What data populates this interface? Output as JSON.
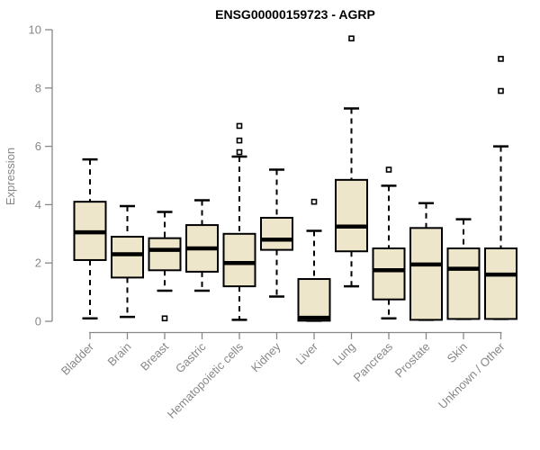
{
  "title": "ENSG00000159723 - AGRP",
  "colors": {
    "box_fill": "#EDE6CA",
    "box_border": "#000000",
    "median": "#000000",
    "whisker": "#000000",
    "axis": "#888888",
    "axis_text": "#878787",
    "title_text": "#000000",
    "background": "#ffffff"
  },
  "chart_data": {
    "type": "boxplot",
    "title": "ENSG00000159723 - AGRP",
    "xlabel": "",
    "ylabel": "Expression",
    "ylim": [
      0,
      10
    ],
    "yticks": [
      "0",
      "2",
      "4",
      "6",
      "8",
      "10"
    ],
    "ytick_values": [
      0,
      2,
      4,
      6,
      8,
      10
    ],
    "grid": false,
    "legend": false,
    "categories": [
      "Bladder",
      "Brain",
      "Breast",
      "Gastric",
      "Hematopoietic cells",
      "Kidney",
      "Liver",
      "Lung",
      "Pancreas",
      "Prostate",
      "Skin",
      "Unknown / Other"
    ],
    "series": [
      {
        "name": "Bladder",
        "min": 0.1,
        "q1": 2.1,
        "median": 3.05,
        "q3": 4.1,
        "max": 5.55,
        "outliers": []
      },
      {
        "name": "Brain",
        "min": 0.15,
        "q1": 1.5,
        "median": 2.3,
        "q3": 2.9,
        "max": 3.95,
        "outliers": []
      },
      {
        "name": "Breast",
        "min": 1.05,
        "q1": 1.75,
        "median": 2.45,
        "q3": 2.85,
        "max": 3.75,
        "outliers": [
          0.1
        ]
      },
      {
        "name": "Gastric",
        "min": 1.05,
        "q1": 1.7,
        "median": 2.5,
        "q3": 3.3,
        "max": 4.15,
        "outliers": []
      },
      {
        "name": "Hematopoietic cells",
        "min": 0.05,
        "q1": 1.2,
        "median": 2.0,
        "q3": 3.0,
        "max": 5.65,
        "outliers": [
          5.8,
          6.2,
          6.7
        ]
      },
      {
        "name": "Kidney",
        "min": 0.85,
        "q1": 2.45,
        "median": 2.8,
        "q3": 3.55,
        "max": 5.2,
        "outliers": []
      },
      {
        "name": "Liver",
        "min": 0.02,
        "q1": 0.02,
        "median": 0.12,
        "q3": 1.45,
        "max": 3.1,
        "outliers": [
          4.1
        ]
      },
      {
        "name": "Lung",
        "min": 1.2,
        "q1": 2.4,
        "median": 3.25,
        "q3": 4.85,
        "max": 7.3,
        "outliers": [
          9.7
        ]
      },
      {
        "name": "Pancreas",
        "min": 0.1,
        "q1": 0.75,
        "median": 1.75,
        "q3": 2.5,
        "max": 4.65,
        "outliers": [
          5.2
        ]
      },
      {
        "name": "Prostate",
        "min": 0.05,
        "q1": 0.05,
        "median": 1.95,
        "q3": 3.2,
        "max": 4.05,
        "outliers": []
      },
      {
        "name": "Skin",
        "min": 0.08,
        "q1": 0.08,
        "median": 1.8,
        "q3": 2.5,
        "max": 3.5,
        "outliers": []
      },
      {
        "name": "Unknown / Other",
        "min": 0.08,
        "q1": 0.08,
        "median": 1.6,
        "q3": 2.5,
        "max": 6.0,
        "outliers": [
          7.9,
          9.0
        ]
      }
    ]
  }
}
